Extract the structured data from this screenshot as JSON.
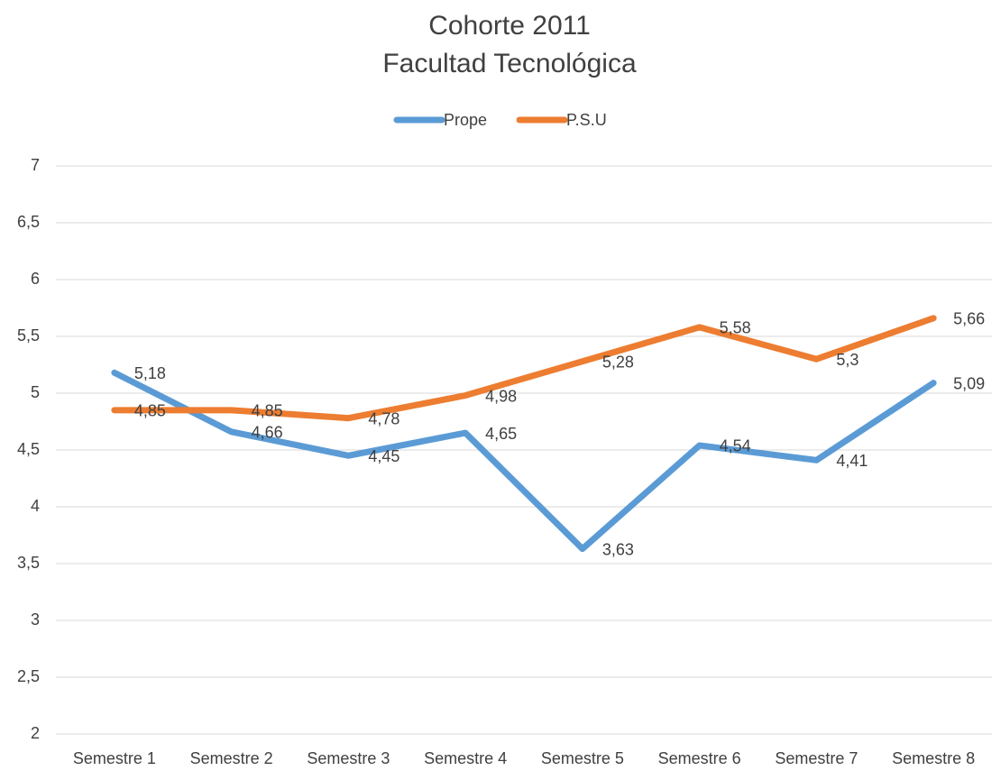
{
  "chart_data": {
    "type": "line",
    "title": "Cohorte 2011",
    "subtitle": "Facultad Tecnológica",
    "categories": [
      "Semestre 1",
      "Semestre 2",
      "Semestre 3",
      "Semestre 4",
      "Semestre 5",
      "Semestre 6",
      "Semestre 7",
      "Semestre 8"
    ],
    "series": [
      {
        "name": "Prope",
        "color": "#5b9bd5",
        "values": [
          5.18,
          4.66,
          4.45,
          4.65,
          3.63,
          4.54,
          4.41,
          5.09
        ],
        "value_labels": [
          "5,18",
          "4,66",
          "4,45",
          "4,65",
          "3,63",
          "4,54",
          "4,41",
          "5,09"
        ]
      },
      {
        "name": "P.S.U",
        "color": "#ed7d31",
        "values": [
          4.85,
          4.85,
          4.78,
          4.98,
          5.28,
          5.58,
          5.3,
          5.66
        ],
        "value_labels": [
          "4,85",
          "4,85",
          "4,78",
          "4,98",
          "5,28",
          "5,58",
          "5,3",
          "5,66"
        ]
      }
    ],
    "ylim": [
      2,
      7
    ],
    "yticks": [
      2,
      {
        "value": 2.5,
        "label": "2,5"
      },
      3,
      {
        "value": 3.5,
        "label": "3,5"
      },
      4,
      {
        "value": 4.5,
        "label": "4,5"
      },
      5,
      {
        "value": 5.5,
        "label": "5,5"
      },
      6,
      {
        "value": 6.5,
        "label": "6,5"
      },
      7
    ],
    "grid": true,
    "legend": "top"
  }
}
